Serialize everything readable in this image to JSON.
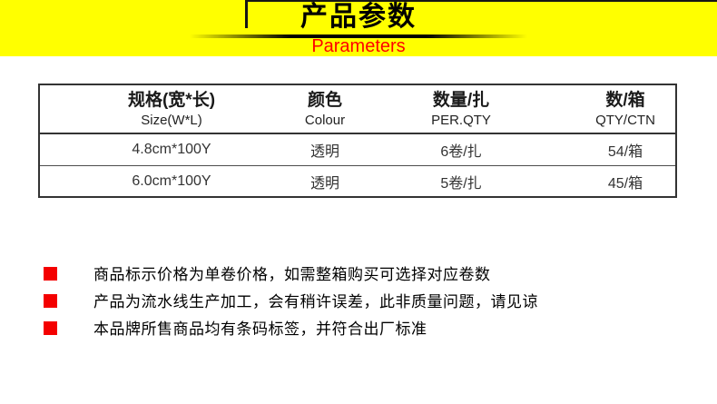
{
  "colors": {
    "banner_bg": "#FFFF00",
    "subtitle_red": "#FF0000",
    "marker_red": "#F40000",
    "table_border": "#333333"
  },
  "banner": {
    "title": "产品参数",
    "subtitle": "Parameters"
  },
  "table": {
    "columns": [
      {
        "zh": "规格(宽*长)",
        "en": "Size(W*L)"
      },
      {
        "zh": "颜色",
        "en": "Colour"
      },
      {
        "zh": "数量/扎",
        "en": "PER.QTY"
      },
      {
        "zh": "数/箱",
        "en": "QTY/CTN"
      }
    ],
    "rows": [
      [
        "4.8cm*100Y",
        "透明",
        "6卷/扎",
        "54/箱"
      ],
      [
        "6.0cm*100Y",
        "透明",
        "5卷/扎",
        "45/箱"
      ]
    ]
  },
  "notes": [
    "商品标示价格为单卷价格，如需整箱购买可选择对应卷数",
    "产品为流水线生产加工，会有稍许误差，此非质量问题，请见谅",
    "本品牌所售商品均有条码标签，并符合出厂标准"
  ]
}
